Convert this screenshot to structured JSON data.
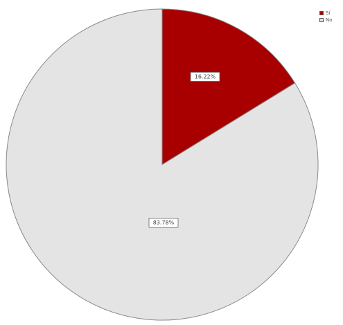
{
  "chart_data": {
    "type": "pie",
    "slices": [
      {
        "label": "Sí",
        "value": 16.22,
        "display": "16.22%",
        "color": "#a80000"
      },
      {
        "label": "No",
        "value": 83.78,
        "display": "83.78%",
        "color": "#e4e4e4"
      }
    ],
    "start_angle": "12 o'clock",
    "direction": "clockwise",
    "legend_position": "top-right",
    "border_color": "#888888"
  }
}
